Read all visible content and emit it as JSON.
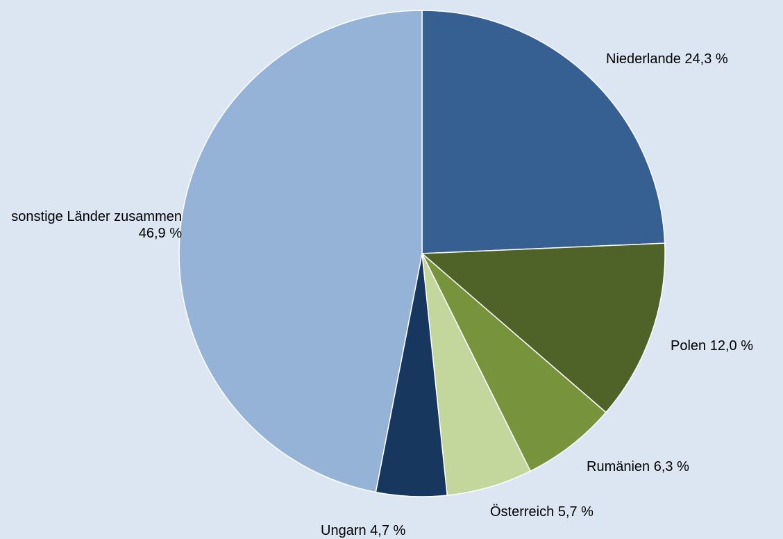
{
  "chart_data": {
    "type": "pie",
    "categories": [
      "Niederlande",
      "Polen",
      "Rumänien",
      "Österreich",
      "Ungarn",
      "sonstige Länder zusammen"
    ],
    "values": [
      24.3,
      12.0,
      6.3,
      5.7,
      4.7,
      46.9
    ],
    "value_labels": [
      "24,3 %",
      "12,0 %",
      "6,3 %",
      "5,7 %",
      "4,7 %",
      "46,9 %"
    ],
    "colors": [
      "#376092",
      "#4f6228",
      "#77933c",
      "#c3d69b",
      "#17375e",
      "#95b3d7"
    ]
  }
}
